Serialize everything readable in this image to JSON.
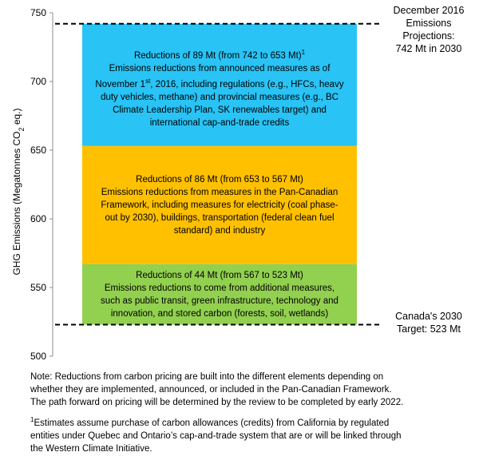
{
  "chart_data": {
    "type": "bar",
    "chart_subtype": "stacked-waterfall",
    "ylabel_prefix": "GHG Emissions (Megatonnes CO",
    "ylabel_sub": "2",
    "ylabel_suffix": " eq.)",
    "ylim": [
      500,
      750
    ],
    "yticks": [
      "500",
      "550",
      "600",
      "650",
      "700",
      "750"
    ],
    "ytick_values": [
      500,
      550,
      600,
      650,
      700,
      750
    ],
    "grid": false,
    "segments": [
      {
        "from": 742,
        "to": 653,
        "color": "#29C3F5",
        "lines": [
          {
            "text": "Reductions of 89 Mt (from 742 to 653 Mt)",
            "sup": "1"
          },
          {
            "text": "Emissions reductions from announced measures as of"
          },
          {
            "text": "November 1",
            "sup": "st",
            "after": ", 2016, including regulations (e.g., HFCs, heavy"
          },
          {
            "text": "duty vehicles, methane) and provincial measures (e.g., BC"
          },
          {
            "text": "Climate  Leadership Plan, SK renewables target) and"
          },
          {
            "text": "international  cap-and-trade credits"
          }
        ]
      },
      {
        "from": 653,
        "to": 567,
        "color": "#FFC000",
        "lines": [
          {
            "text": "Reductions of 86 Mt (from 653 to 567 Mt)"
          },
          {
            "text": "Emissions reductions from measures in the Pan-Canadian"
          },
          {
            "text": "Framework, including measures for electricity  (coal phase-"
          },
          {
            "text": "out by 2030), buildings, transportation (federal clean fuel"
          },
          {
            "text": "standard) and industry"
          }
        ]
      },
      {
        "from": 567,
        "to": 523,
        "color": "#92D050",
        "lines": [
          {
            "text": "Reductions of 44 Mt (from  567 to 523 Mt)"
          },
          {
            "text": "Emissions reductions to come from additional measures,"
          },
          {
            "text": "such as public transit, green infrastructure, technology and"
          },
          {
            "text": "innovation, and stored carbon (forests, soil, wetlands)"
          }
        ]
      }
    ],
    "reference_lines": [
      {
        "value": 742,
        "style": "dashed",
        "label_lines": [
          "December 2016",
          "Emissions",
          "Projections:",
          "742 Mt in 2030"
        ]
      },
      {
        "value": 523,
        "style": "dashed",
        "label_lines": [
          "Canada's 2030",
          "Target: 523 Mt"
        ]
      }
    ]
  },
  "notes": {
    "note_lines": [
      "Note: Reductions from carbon pricing are built into the different elements depending on",
      "whether they are implemented,  announced, or included in the Pan-Canadian Framework.",
      "The path forward on pricing will be determined  by the review to be completed by early 2022."
    ],
    "footnote_mark": "1",
    "footnote_lines": [
      "Estimates assume purchase of carbon allowances (credits) from California  by regulated",
      "entities under Quebec and Ontario’s cap-and-trade system that are or will be linked through",
      "the Western Climate  Initiative."
    ]
  }
}
